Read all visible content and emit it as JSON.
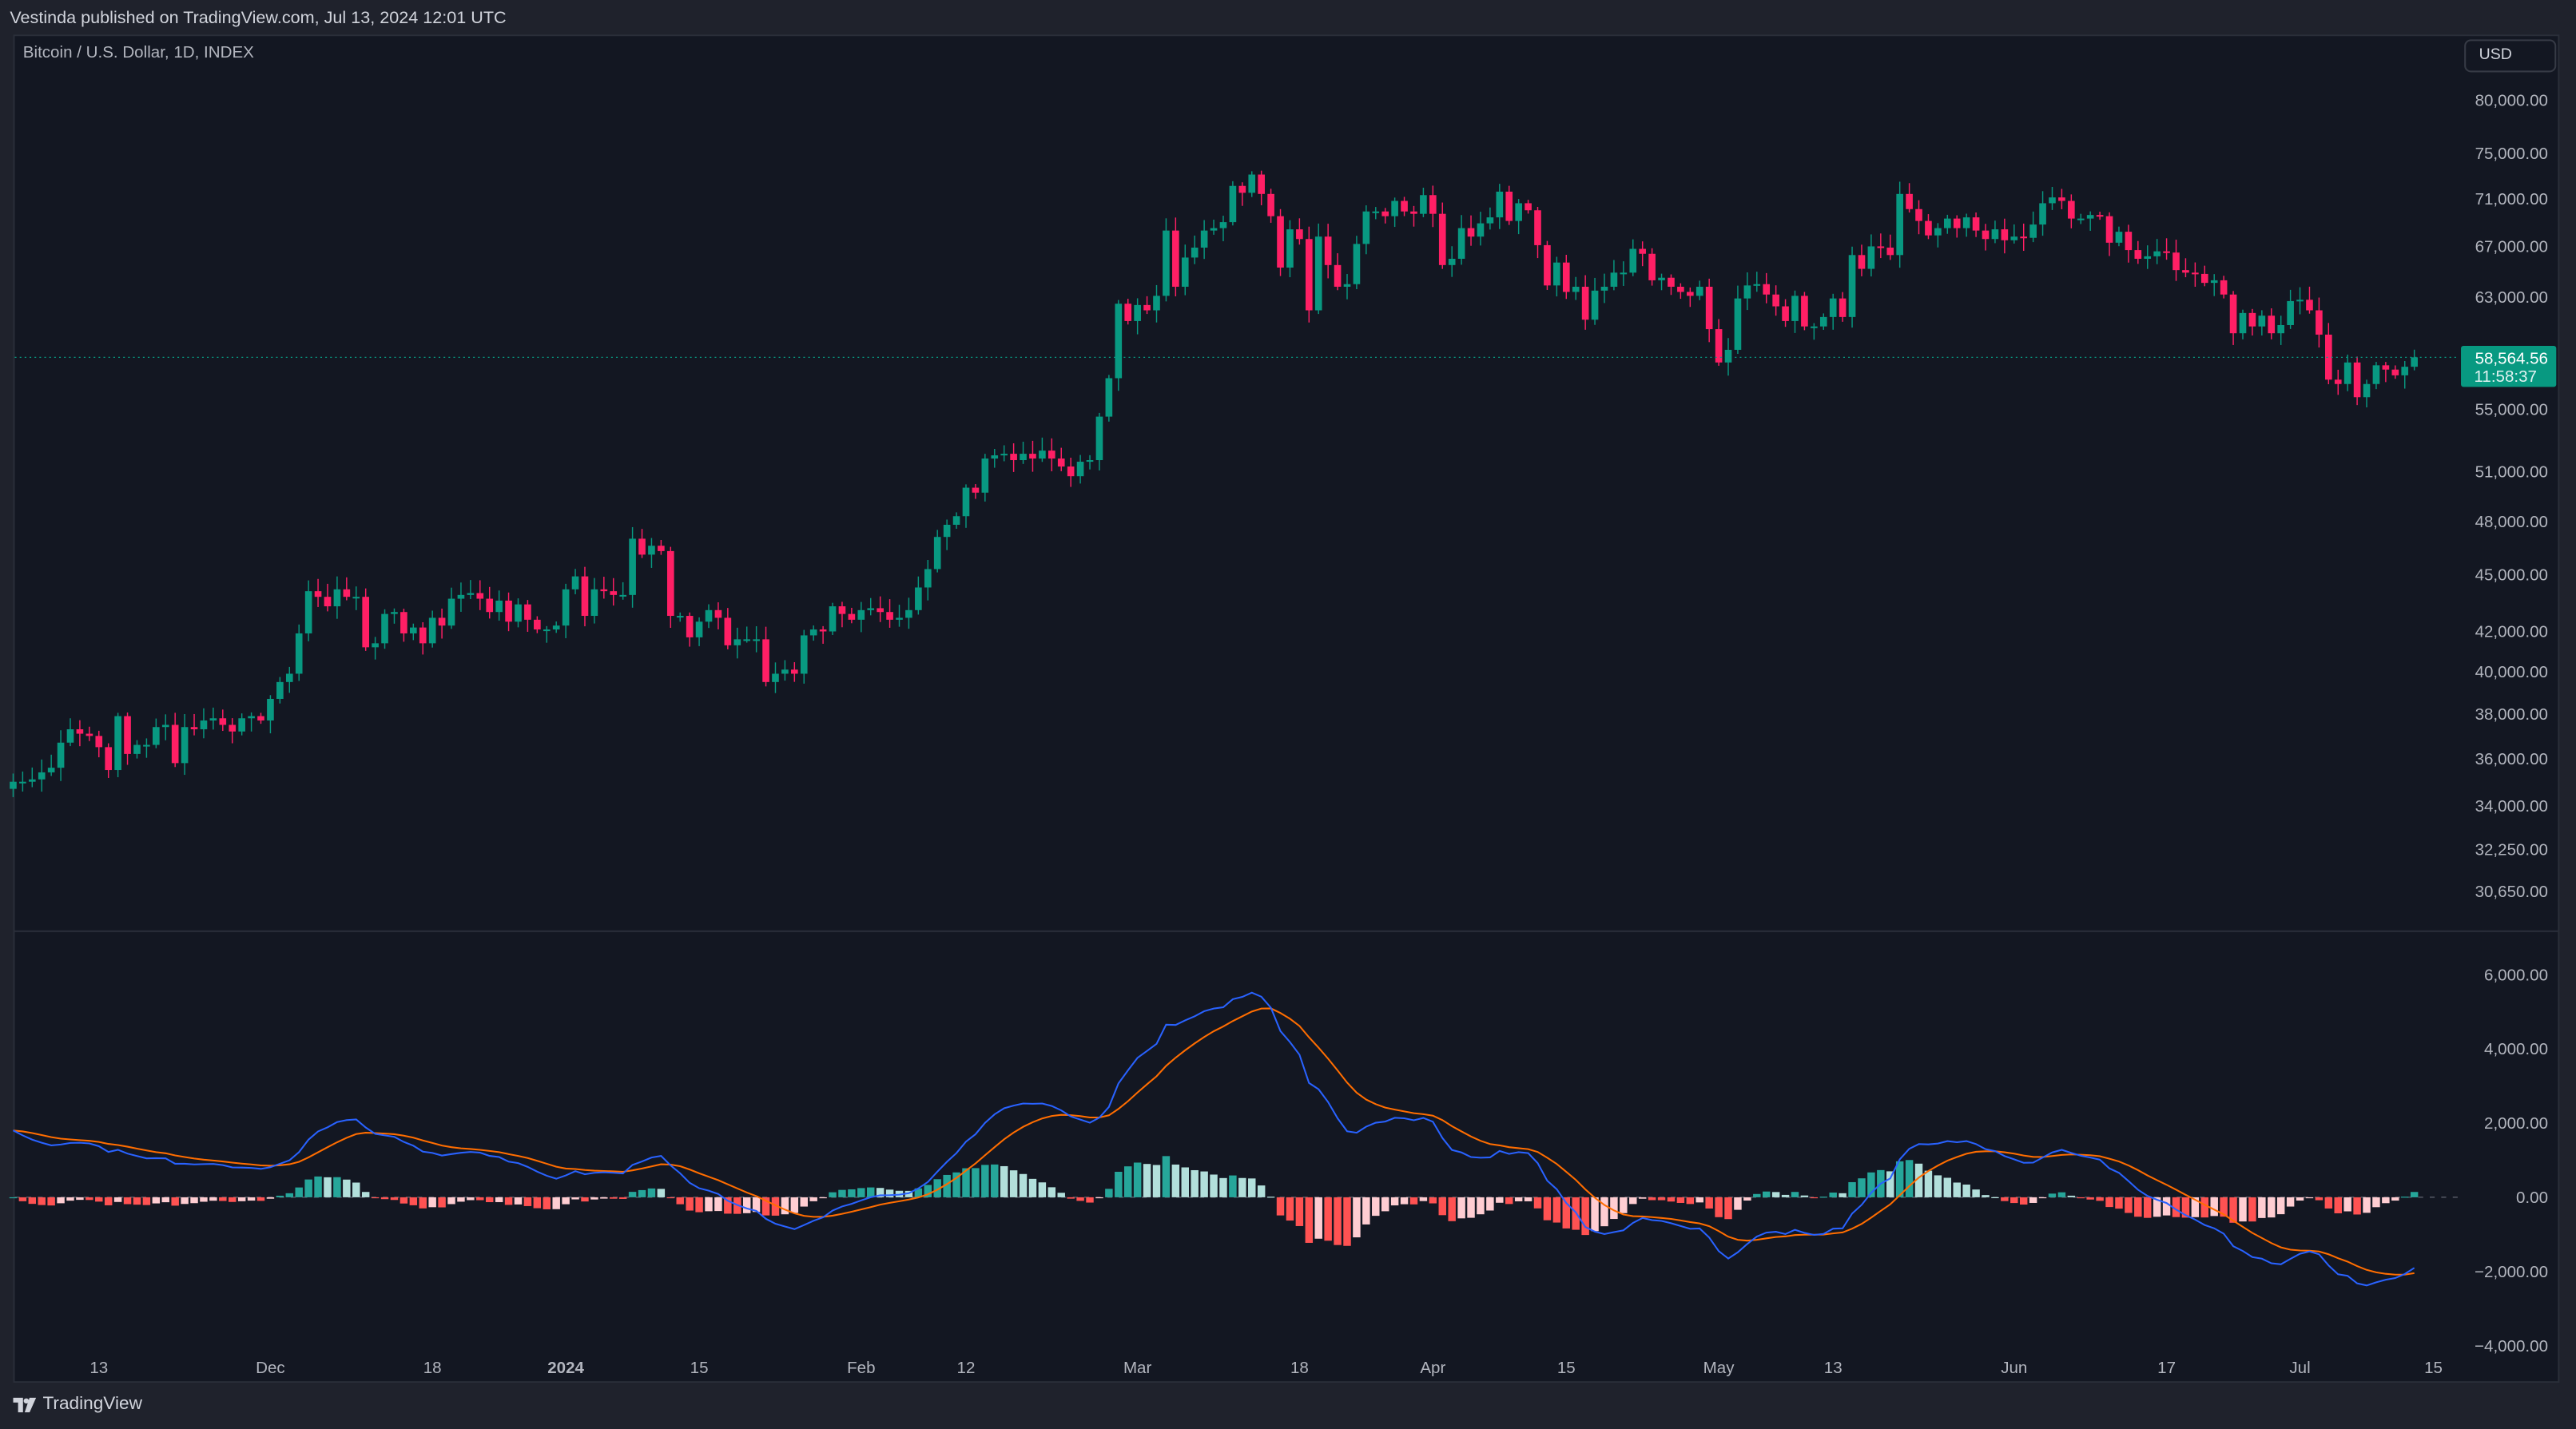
{
  "header": {
    "published": "Vestinda published on TradingView.com, Jul 13, 2024 12:01 UTC"
  },
  "chart": {
    "symbol": "Bitcoin / U.S. Dollar, 1D, INDEX",
    "currency_button": "USD"
  },
  "last_price": {
    "value": "58,564.56",
    "countdown": "11:58:37"
  },
  "footer": {
    "brand": "TradingView",
    "logo_icon": "tradingview-logo-icon"
  },
  "colors": {
    "up": "#089981",
    "down": "#f23645",
    "down_candle": "#ff1f65",
    "macd_line": "#2962ff",
    "signal_line": "#ff6d00",
    "hist_up_strong": "#26a69a",
    "hist_up_weak": "#b2dfdb",
    "hist_down_strong": "#ff5252",
    "hist_down_weak": "#ffcdd2",
    "background": "#131722"
  },
  "chart_data": [
    {
      "type": "candlestick",
      "scale": "log",
      "start_date": "2023-11-04",
      "end_date": "2024-07-13",
      "interval": "1D",
      "first_open": 34700,
      "close": [
        35000,
        35000,
        35100,
        35400,
        35600,
        36700,
        37300,
        37100,
        37000,
        36500,
        35500,
        37900,
        36200,
        36600,
        36600,
        37400,
        37500,
        35800,
        37400,
        37300,
        37700,
        37800,
        37500,
        37200,
        37800,
        37900,
        37700,
        38700,
        39500,
        39900,
        41900,
        44100,
        43800,
        43300,
        44200,
        43800,
        43800,
        41200,
        41400,
        42900,
        43000,
        41900,
        42200,
        41400,
        42700,
        42300,
        43700,
        43900,
        44000,
        43700,
        43000,
        43600,
        42500,
        43400,
        42600,
        42100,
        42100,
        42300,
        44200,
        44900,
        42800,
        44200,
        44100,
        43900,
        43900,
        47000,
        46100,
        46600,
        46300,
        42800,
        42800,
        41700,
        42500,
        43100,
        42700,
        41300,
        41600,
        41600,
        41600,
        39500,
        39900,
        40100,
        39900,
        41800,
        42100,
        42000,
        43300,
        42900,
        42600,
        43100,
        43200,
        43000,
        42600,
        42700,
        43100,
        44300,
        45300,
        47100,
        47800,
        48300,
        50000,
        49700,
        51800,
        52000,
        52100,
        51700,
        52100,
        51800,
        52300,
        51800,
        51300,
        50700,
        51600,
        51700,
        54500,
        57100,
        62500,
        61200,
        62400,
        62000,
        63100,
        68300,
        63800,
        66100,
        66900,
        68300,
        68500,
        69000,
        72100,
        71500,
        73100,
        71400,
        69500,
        65300,
        68400,
        67600,
        62000,
        67800,
        65500,
        63800,
        64000,
        67200,
        69900,
        69900,
        69500,
        70800,
        69900,
        69700,
        71300,
        69700,
        65500,
        66000,
        68500,
        67800,
        68900,
        69400,
        71600,
        69100,
        70600,
        70000,
        67100,
        63900,
        65700,
        63400,
        63800,
        61300,
        63500,
        63800,
        64900,
        64900,
        66800,
        66400,
        64300,
        64500,
        63800,
        63400,
        63100,
        63800,
        60600,
        58200,
        59100,
        62900,
        63900,
        64000,
        63200,
        62300,
        61200,
        63100,
        60800,
        60800,
        61500,
        62900,
        61500,
        66300,
        65200,
        67000,
        66900,
        66300,
        71400,
        70100,
        69100,
        67900,
        68500,
        69300,
        68500,
        69400,
        68300,
        67600,
        68400,
        67500,
        67800,
        67700,
        68800,
        70600,
        71100,
        70800,
        69300,
        69300,
        69600,
        69500,
        67300,
        68200,
        66700,
        66000,
        66200,
        66600,
        66500,
        65100,
        64900,
        64800,
        64100,
        64300,
        63200,
        60300,
        61800,
        60800,
        61600,
        60300,
        60900,
        62700,
        62800,
        62000,
        60200,
        57000,
        56700,
        58200,
        55800,
        56700,
        58000,
        57700,
        57300,
        57900,
        58564.56
      ],
      "y_ticks": [
        {
          "value": 80000,
          "label": "80,000.00"
        },
        {
          "value": 75000,
          "label": "75,000.00"
        },
        {
          "value": 71000,
          "label": "71,000.00"
        },
        {
          "value": 67000,
          "label": "67,000.00"
        },
        {
          "value": 63000,
          "label": "63,000.00"
        },
        {
          "value": 55000,
          "label": "55,000.00"
        },
        {
          "value": 51000,
          "label": "51,000.00"
        },
        {
          "value": 48000,
          "label": "48,000.00"
        },
        {
          "value": 45000,
          "label": "45,000.00"
        },
        {
          "value": 42000,
          "label": "42,000.00"
        },
        {
          "value": 40000,
          "label": "40,000.00"
        },
        {
          "value": 38000,
          "label": "38,000.00"
        },
        {
          "value": 36000,
          "label": "36,000.00"
        },
        {
          "value": 34000,
          "label": "34,000.00"
        },
        {
          "value": 32250,
          "label": "32,250.00"
        },
        {
          "value": 30650,
          "label": "30,650.00"
        }
      ],
      "ylim": [
        30650,
        80000
      ],
      "grid": false
    },
    {
      "type": "macd",
      "fast": 12,
      "slow": 26,
      "signal": 9,
      "macd_initial": 1800,
      "ylim": [
        -4000,
        6000
      ],
      "y_ticks": [
        {
          "value": 6000,
          "label": "6,000.00"
        },
        {
          "value": 4000,
          "label": "4,000.00"
        },
        {
          "value": 2000,
          "label": "2,000.00"
        },
        {
          "value": 0,
          "label": "0.00"
        },
        {
          "value": -2000,
          "label": "−2,000.00"
        },
        {
          "value": -4000,
          "label": "−4,000.00"
        }
      ]
    }
  ],
  "x_ticks": [
    {
      "date": "2023-11-13",
      "label": "13"
    },
    {
      "date": "2023-12-01",
      "label": "Dec"
    },
    {
      "date": "2023-12-18",
      "label": "18"
    },
    {
      "date": "2024-01-01",
      "label": "2024",
      "bold": true
    },
    {
      "date": "2024-01-15",
      "label": "15"
    },
    {
      "date": "2024-02-01",
      "label": "Feb"
    },
    {
      "date": "2024-02-12",
      "label": "12"
    },
    {
      "date": "2024-03-01",
      "label": "Mar"
    },
    {
      "date": "2024-03-18",
      "label": "18"
    },
    {
      "date": "2024-04-01",
      "label": "Apr"
    },
    {
      "date": "2024-04-15",
      "label": "15"
    },
    {
      "date": "2024-05-01",
      "label": "May"
    },
    {
      "date": "2024-05-13",
      "label": "13"
    },
    {
      "date": "2024-06-01",
      "label": "Jun"
    },
    {
      "date": "2024-06-17",
      "label": "17"
    },
    {
      "date": "2024-07-01",
      "label": "Jul"
    },
    {
      "date": "2024-07-15",
      "label": "15"
    }
  ]
}
